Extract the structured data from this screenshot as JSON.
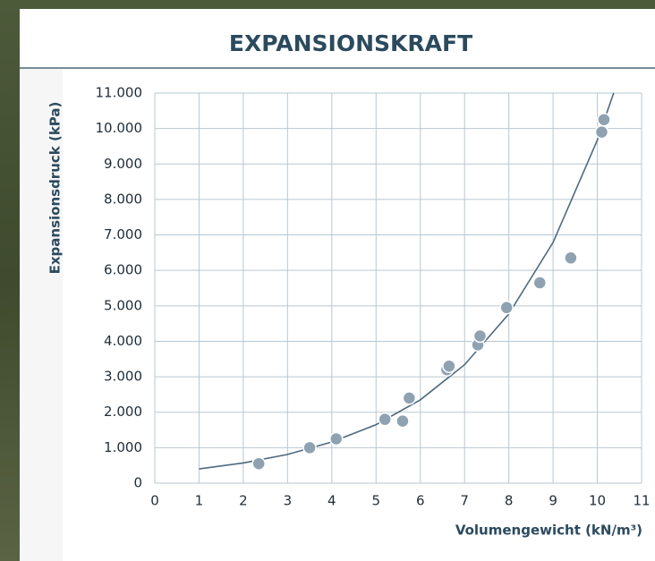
{
  "chart_data": {
    "type": "scatter",
    "title": "EXPANSIONSKRAFT",
    "x_label": "Volumengewicht (kN/m³)",
    "y_label": "Expansionsdruck (kPa)",
    "x": [
      2.35,
      3.5,
      4.1,
      5.2,
      5.6,
      5.75,
      6.6,
      6.65,
      7.3,
      7.35,
      7.95,
      8.7,
      9.4,
      10.1,
      10.15
    ],
    "values": [
      550,
      1000,
      1250,
      1800,
      1750,
      2400,
      3200,
      3300,
      3900,
      4150,
      4950,
      5650,
      6350,
      9900,
      10250
    ],
    "color": "#8ea2b2",
    "trendline": {
      "x": [
        1,
        2,
        3,
        4,
        5,
        6,
        7,
        8,
        9,
        10,
        10.37
      ],
      "values": [
        400,
        570,
        810,
        1160,
        1650,
        2350,
        3340,
        4770,
        6790,
        9670,
        11000
      ],
      "color": "#4d6a80"
    },
    "xlim": [
      0,
      11
    ],
    "xticks": [
      0,
      1,
      2,
      3,
      4,
      5,
      6,
      7,
      8,
      9,
      10,
      11
    ],
    "ylim": [
      0,
      11000
    ],
    "yticks": [
      0,
      {
        "value": 1000,
        "label": "1.000"
      },
      {
        "value": 2000,
        "label": "2.000"
      },
      {
        "value": 3000,
        "label": "3.000"
      },
      {
        "value": 4000,
        "label": "4.000"
      },
      {
        "value": 5000,
        "label": "5.000"
      },
      {
        "value": 6000,
        "label": "6.000"
      },
      {
        "value": 7000,
        "label": "7.000"
      },
      {
        "value": 8000,
        "label": "8.000"
      },
      {
        "value": 9000,
        "label": "9.000"
      },
      {
        "value": 10000,
        "label": "10.000"
      },
      {
        "value": 11000,
        "label": "11.000"
      }
    ],
    "grid": true
  }
}
